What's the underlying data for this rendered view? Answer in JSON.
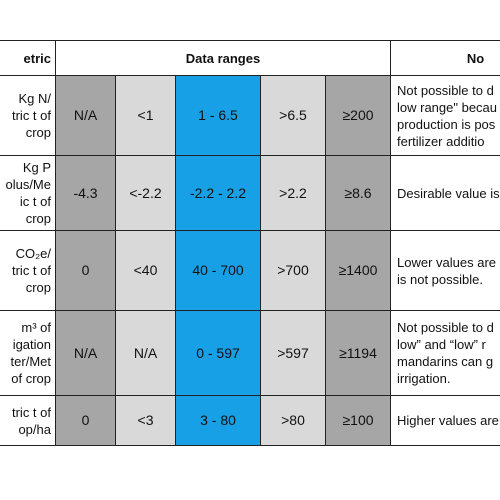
{
  "header": {
    "metric": "etric",
    "data_ranges": "Data ranges",
    "notes": "No"
  },
  "rows": [
    {
      "metric": [
        "Kg N/",
        "tric t of",
        "crop"
      ],
      "cells": [
        "N/A",
        "<1",
        "1 - 6.5",
        ">6.5",
        "≥200"
      ],
      "notes": [
        "Not possible to d",
        "low range\" becau",
        "production is pos",
        "fertilizer additio"
      ]
    },
    {
      "metric": [
        "Kg P",
        "olus/Me",
        "ic t of",
        "crop"
      ],
      "cells": [
        "-4.3",
        "<-2.2",
        "-2.2 - 2.2",
        ">2.2",
        "≥8.6"
      ],
      "notes": [
        "Desirable value is"
      ]
    },
    {
      "metric": [
        "CO₂e/",
        "tric t of",
        "crop"
      ],
      "cells": [
        "0",
        "<40",
        "40 - 700",
        ">700",
        "≥1400"
      ],
      "notes": [
        "Lower values are",
        "is not possible."
      ]
    },
    {
      "metric": [
        "m³ of",
        "igation",
        "ter/Met",
        "of crop"
      ],
      "cells": [
        "N/A",
        "N/A",
        "0 - 597",
        ">597",
        "≥1194"
      ],
      "notes": [
        "Not possible to d",
        "low” and “low” r",
        "mandarins can g",
        "irrigation."
      ]
    },
    {
      "metric": [
        "tric t of",
        "op/ha"
      ],
      "cells": [
        "0",
        "<3",
        "3 - 80",
        ">80",
        "≥100"
      ],
      "notes": [
        "Higher values are"
      ]
    }
  ]
}
